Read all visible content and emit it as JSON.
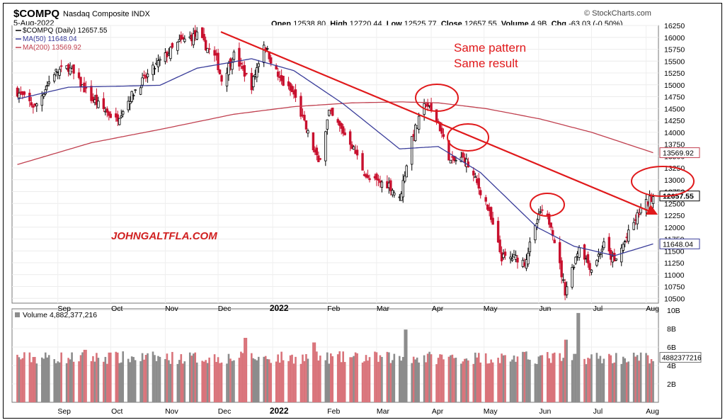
{
  "header": {
    "symbol": "$COMPQ",
    "name": "Nasdaq Composite INDX",
    "date": "5-Aug-2022",
    "brand": "© StockCharts.com",
    "open_label": "Open",
    "open": "12538.80",
    "high_label": "High",
    "high": "12720.44",
    "low_label": "Low",
    "low": "12525.77",
    "close_label": "Close",
    "close": "12657.55",
    "volume_label": "Volume",
    "volume": "4.9B",
    "chg_label": "Chg",
    "chg": "-63.03 (-0.50%)"
  },
  "colors": {
    "up": "#000000",
    "down": "#c8102e",
    "ma50": "#3a3d9a",
    "ma200": "#c0404f",
    "annotation": "#e0191b",
    "vol_up": "#8c8c8c",
    "vol_down": "#d9737a"
  },
  "chart_data": [
    {
      "type": "candlestick",
      "legend": [
        {
          "key": "price",
          "label": "$COMPQ (Daily) 12657.55"
        },
        {
          "key": "ma50",
          "label": "MA(50) 11648.04"
        },
        {
          "key": "ma200",
          "label": "MA(200) 13569.92"
        }
      ],
      "ylim": [
        10400,
        16250
      ],
      "y_ticks": [
        "16250",
        "16000",
        "15750",
        "15500",
        "15250",
        "15000",
        "14750",
        "14500",
        "14250",
        "14000",
        "13750",
        "13500",
        "13250",
        "13000",
        "12750",
        "12500",
        "12250",
        "12000",
        "11750",
        "11500",
        "11250",
        "11000",
        "10750",
        "10500"
      ],
      "x_months": [
        "Sep",
        "Oct",
        "Nov",
        "Dec",
        "2022",
        "Feb",
        "Mar",
        "Apr",
        "May",
        "Jun",
        "Jul",
        "Aug"
      ],
      "price_anchors": [
        [
          "2021-08-09",
          14850
        ],
        [
          "2021-08-19",
          14530
        ],
        [
          "2021-08-30",
          15260
        ],
        [
          "2021-09-07",
          15370
        ],
        [
          "2021-09-20",
          14710
        ],
        [
          "2021-10-04",
          14260
        ],
        [
          "2021-10-15",
          14900
        ],
        [
          "2021-10-29",
          15500
        ],
        [
          "2021-11-09",
          15900
        ],
        [
          "2021-11-19",
          16050
        ],
        [
          "2021-11-30",
          15540
        ],
        [
          "2021-12-03",
          15100
        ],
        [
          "2021-12-10",
          15630
        ],
        [
          "2021-12-20",
          14980
        ],
        [
          "2021-12-27",
          15870
        ],
        [
          "2022-01-05",
          15100
        ],
        [
          "2022-01-13",
          14800
        ],
        [
          "2022-01-27",
          13350
        ],
        [
          "2022-02-02",
          14420
        ],
        [
          "2022-02-14",
          13800
        ],
        [
          "2022-02-24",
          13000
        ],
        [
          "2022-03-08",
          12900
        ],
        [
          "2022-03-14",
          12580
        ],
        [
          "2022-03-21",
          13890
        ],
        [
          "2022-03-29",
          14620
        ],
        [
          "2022-04-05",
          14200
        ],
        [
          "2022-04-12",
          13380
        ],
        [
          "2022-04-20",
          13450
        ],
        [
          "2022-05-02",
          12530
        ],
        [
          "2022-05-11",
          11360
        ],
        [
          "2022-05-20",
          11350
        ],
        [
          "2022-05-24",
          11260
        ],
        [
          "2022-06-02",
          12320
        ],
        [
          "2022-06-08",
          12080
        ],
        [
          "2022-06-16",
          10650
        ],
        [
          "2022-06-24",
          11600
        ],
        [
          "2022-07-01",
          11120
        ],
        [
          "2022-07-08",
          11630
        ],
        [
          "2022-07-14",
          11250
        ],
        [
          "2022-07-29",
          12390
        ],
        [
          "2022-08-05",
          12657
        ]
      ],
      "ma50_anchors": [
        [
          "2021-08-09",
          14700
        ],
        [
          "2021-09-07",
          14950
        ],
        [
          "2021-10-04",
          14970
        ],
        [
          "2021-10-29",
          14990
        ],
        [
          "2021-11-19",
          15350
        ],
        [
          "2021-12-20",
          15550
        ],
        [
          "2022-01-13",
          15300
        ],
        [
          "2022-02-10",
          14600
        ],
        [
          "2022-03-14",
          13650
        ],
        [
          "2022-04-05",
          13700
        ],
        [
          "2022-04-29",
          13150
        ],
        [
          "2022-05-31",
          12000
        ],
        [
          "2022-06-21",
          11600
        ],
        [
          "2022-07-14",
          11400
        ],
        [
          "2022-08-05",
          11648
        ]
      ],
      "ma200_anchors": [
        [
          "2021-08-09",
          13320
        ],
        [
          "2021-09-20",
          13780
        ],
        [
          "2021-10-29",
          14060
        ],
        [
          "2021-12-10",
          14380
        ],
        [
          "2022-01-13",
          14540
        ],
        [
          "2022-02-15",
          14620
        ],
        [
          "2022-03-15",
          14640
        ],
        [
          "2022-04-05",
          14620
        ],
        [
          "2022-05-02",
          14500
        ],
        [
          "2022-06-02",
          14280
        ],
        [
          "2022-07-01",
          14000
        ],
        [
          "2022-08-05",
          13570
        ]
      ],
      "annotations": {
        "text_line1": "Same pattern",
        "text_line2": "Same result",
        "watermark": "JOHNGALTFLA.COM"
      },
      "last_price_label": "12657.55",
      "ma200_value_label": "13569.92",
      "ma50_value_label": "11648.04"
    },
    {
      "type": "bar",
      "legend": "Volume 4,882,377,216",
      "ylim": [
        0,
        10000000000
      ],
      "y_ticks": [
        "10B",
        "8B",
        "6B",
        "4B",
        "2B"
      ],
      "last_value_label": "4882377216",
      "baseline": 4700000000,
      "spikes": [
        [
          "2021-09-17",
          5700000000
        ],
        [
          "2021-10-01",
          5400000000
        ],
        [
          "2021-12-17",
          7000000000
        ],
        [
          "2022-01-24",
          6500000000
        ],
        [
          "2022-03-18",
          7900000000
        ],
        [
          "2022-06-17",
          6800000000
        ],
        [
          "2022-06-24",
          9700000000
        ]
      ]
    }
  ]
}
